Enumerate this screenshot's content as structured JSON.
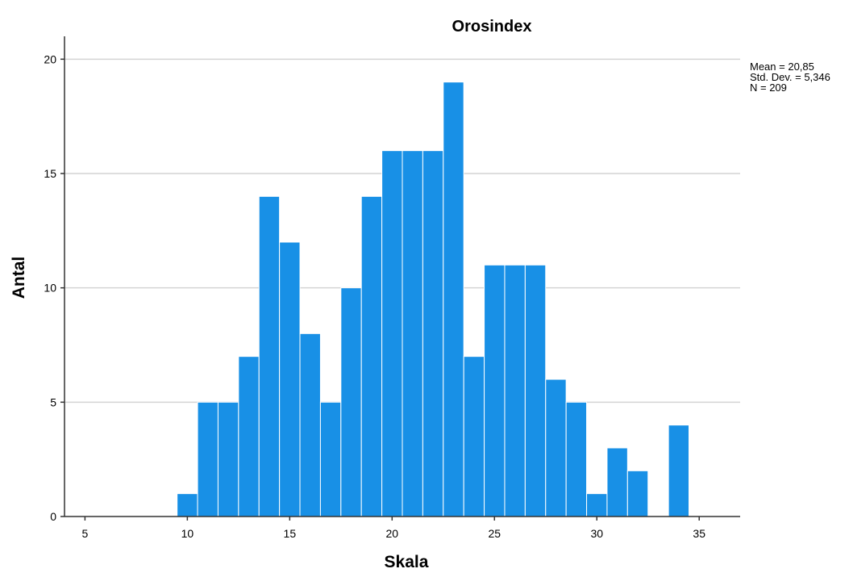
{
  "chart_data": {
    "type": "bar",
    "title": "Orosindex",
    "xlabel": "Skala",
    "ylabel": "Antal",
    "xlim": [
      4,
      37
    ],
    "ylim": [
      0,
      21
    ],
    "x_ticks": [
      5,
      10,
      15,
      20,
      25,
      30,
      35
    ],
    "y_ticks": [
      0,
      5,
      10,
      15,
      20
    ],
    "grid": true,
    "bar_color": "#1890e6",
    "bins": [
      {
        "x": 10,
        "count": 1
      },
      {
        "x": 11,
        "count": 5
      },
      {
        "x": 12,
        "count": 5
      },
      {
        "x": 13,
        "count": 7
      },
      {
        "x": 14,
        "count": 14
      },
      {
        "x": 15,
        "count": 12
      },
      {
        "x": 16,
        "count": 8
      },
      {
        "x": 17,
        "count": 5
      },
      {
        "x": 18,
        "count": 10
      },
      {
        "x": 19,
        "count": 14
      },
      {
        "x": 20,
        "count": 16
      },
      {
        "x": 21,
        "count": 16
      },
      {
        "x": 22,
        "count": 16
      },
      {
        "x": 23,
        "count": 19
      },
      {
        "x": 24,
        "count": 7
      },
      {
        "x": 25,
        "count": 11
      },
      {
        "x": 26,
        "count": 11
      },
      {
        "x": 27,
        "count": 11
      },
      {
        "x": 28,
        "count": 6
      },
      {
        "x": 29,
        "count": 5
      },
      {
        "x": 30,
        "count": 1
      },
      {
        "x": 31,
        "count": 3
      },
      {
        "x": 32,
        "count": 2
      },
      {
        "x": 34,
        "count": 4
      }
    ],
    "stats": {
      "mean": "Mean = 20,85",
      "std": "Std. Dev. = 5,346",
      "n": "N = 209"
    }
  }
}
